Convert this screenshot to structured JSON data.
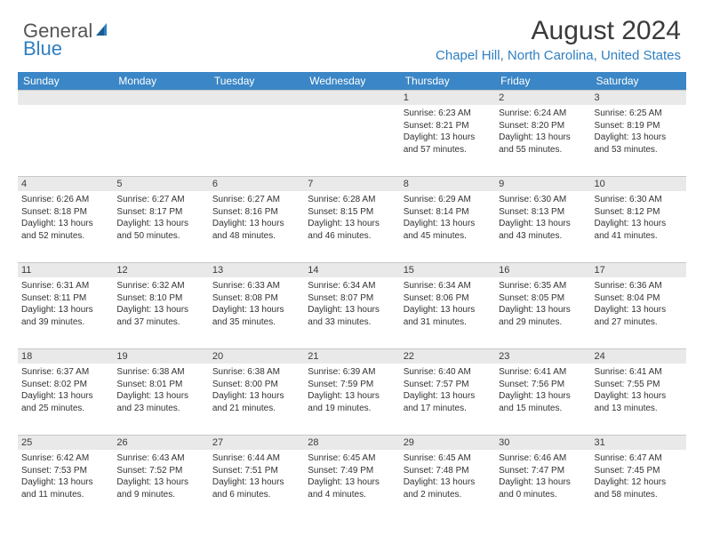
{
  "brand": {
    "line1": "General",
    "line2": "Blue",
    "icon_color": "#2f7fc1"
  },
  "header": {
    "title": "August 2024",
    "location": "Chapel Hill, North Carolina, United States"
  },
  "colors": {
    "header_bg": "#3a86c6",
    "header_text": "#ffffff",
    "daynum_bg": "#e9e9e9",
    "text": "#333333",
    "accent": "#2f7fc1"
  },
  "weekdays": [
    "Sunday",
    "Monday",
    "Tuesday",
    "Wednesday",
    "Thursday",
    "Friday",
    "Saturday"
  ],
  "weeks": [
    [
      {
        "day": "",
        "sunrise": "",
        "sunset": "",
        "daylight": ""
      },
      {
        "day": "",
        "sunrise": "",
        "sunset": "",
        "daylight": ""
      },
      {
        "day": "",
        "sunrise": "",
        "sunset": "",
        "daylight": ""
      },
      {
        "day": "",
        "sunrise": "",
        "sunset": "",
        "daylight": ""
      },
      {
        "day": "1",
        "sunrise": "Sunrise: 6:23 AM",
        "sunset": "Sunset: 8:21 PM",
        "daylight": "Daylight: 13 hours and 57 minutes."
      },
      {
        "day": "2",
        "sunrise": "Sunrise: 6:24 AM",
        "sunset": "Sunset: 8:20 PM",
        "daylight": "Daylight: 13 hours and 55 minutes."
      },
      {
        "day": "3",
        "sunrise": "Sunrise: 6:25 AM",
        "sunset": "Sunset: 8:19 PM",
        "daylight": "Daylight: 13 hours and 53 minutes."
      }
    ],
    [
      {
        "day": "4",
        "sunrise": "Sunrise: 6:26 AM",
        "sunset": "Sunset: 8:18 PM",
        "daylight": "Daylight: 13 hours and 52 minutes."
      },
      {
        "day": "5",
        "sunrise": "Sunrise: 6:27 AM",
        "sunset": "Sunset: 8:17 PM",
        "daylight": "Daylight: 13 hours and 50 minutes."
      },
      {
        "day": "6",
        "sunrise": "Sunrise: 6:27 AM",
        "sunset": "Sunset: 8:16 PM",
        "daylight": "Daylight: 13 hours and 48 minutes."
      },
      {
        "day": "7",
        "sunrise": "Sunrise: 6:28 AM",
        "sunset": "Sunset: 8:15 PM",
        "daylight": "Daylight: 13 hours and 46 minutes."
      },
      {
        "day": "8",
        "sunrise": "Sunrise: 6:29 AM",
        "sunset": "Sunset: 8:14 PM",
        "daylight": "Daylight: 13 hours and 45 minutes."
      },
      {
        "day": "9",
        "sunrise": "Sunrise: 6:30 AM",
        "sunset": "Sunset: 8:13 PM",
        "daylight": "Daylight: 13 hours and 43 minutes."
      },
      {
        "day": "10",
        "sunrise": "Sunrise: 6:30 AM",
        "sunset": "Sunset: 8:12 PM",
        "daylight": "Daylight: 13 hours and 41 minutes."
      }
    ],
    [
      {
        "day": "11",
        "sunrise": "Sunrise: 6:31 AM",
        "sunset": "Sunset: 8:11 PM",
        "daylight": "Daylight: 13 hours and 39 minutes."
      },
      {
        "day": "12",
        "sunrise": "Sunrise: 6:32 AM",
        "sunset": "Sunset: 8:10 PM",
        "daylight": "Daylight: 13 hours and 37 minutes."
      },
      {
        "day": "13",
        "sunrise": "Sunrise: 6:33 AM",
        "sunset": "Sunset: 8:08 PM",
        "daylight": "Daylight: 13 hours and 35 minutes."
      },
      {
        "day": "14",
        "sunrise": "Sunrise: 6:34 AM",
        "sunset": "Sunset: 8:07 PM",
        "daylight": "Daylight: 13 hours and 33 minutes."
      },
      {
        "day": "15",
        "sunrise": "Sunrise: 6:34 AM",
        "sunset": "Sunset: 8:06 PM",
        "daylight": "Daylight: 13 hours and 31 minutes."
      },
      {
        "day": "16",
        "sunrise": "Sunrise: 6:35 AM",
        "sunset": "Sunset: 8:05 PM",
        "daylight": "Daylight: 13 hours and 29 minutes."
      },
      {
        "day": "17",
        "sunrise": "Sunrise: 6:36 AM",
        "sunset": "Sunset: 8:04 PM",
        "daylight": "Daylight: 13 hours and 27 minutes."
      }
    ],
    [
      {
        "day": "18",
        "sunrise": "Sunrise: 6:37 AM",
        "sunset": "Sunset: 8:02 PM",
        "daylight": "Daylight: 13 hours and 25 minutes."
      },
      {
        "day": "19",
        "sunrise": "Sunrise: 6:38 AM",
        "sunset": "Sunset: 8:01 PM",
        "daylight": "Daylight: 13 hours and 23 minutes."
      },
      {
        "day": "20",
        "sunrise": "Sunrise: 6:38 AM",
        "sunset": "Sunset: 8:00 PM",
        "daylight": "Daylight: 13 hours and 21 minutes."
      },
      {
        "day": "21",
        "sunrise": "Sunrise: 6:39 AM",
        "sunset": "Sunset: 7:59 PM",
        "daylight": "Daylight: 13 hours and 19 minutes."
      },
      {
        "day": "22",
        "sunrise": "Sunrise: 6:40 AM",
        "sunset": "Sunset: 7:57 PM",
        "daylight": "Daylight: 13 hours and 17 minutes."
      },
      {
        "day": "23",
        "sunrise": "Sunrise: 6:41 AM",
        "sunset": "Sunset: 7:56 PM",
        "daylight": "Daylight: 13 hours and 15 minutes."
      },
      {
        "day": "24",
        "sunrise": "Sunrise: 6:41 AM",
        "sunset": "Sunset: 7:55 PM",
        "daylight": "Daylight: 13 hours and 13 minutes."
      }
    ],
    [
      {
        "day": "25",
        "sunrise": "Sunrise: 6:42 AM",
        "sunset": "Sunset: 7:53 PM",
        "daylight": "Daylight: 13 hours and 11 minutes."
      },
      {
        "day": "26",
        "sunrise": "Sunrise: 6:43 AM",
        "sunset": "Sunset: 7:52 PM",
        "daylight": "Daylight: 13 hours and 9 minutes."
      },
      {
        "day": "27",
        "sunrise": "Sunrise: 6:44 AM",
        "sunset": "Sunset: 7:51 PM",
        "daylight": "Daylight: 13 hours and 6 minutes."
      },
      {
        "day": "28",
        "sunrise": "Sunrise: 6:45 AM",
        "sunset": "Sunset: 7:49 PM",
        "daylight": "Daylight: 13 hours and 4 minutes."
      },
      {
        "day": "29",
        "sunrise": "Sunrise: 6:45 AM",
        "sunset": "Sunset: 7:48 PM",
        "daylight": "Daylight: 13 hours and 2 minutes."
      },
      {
        "day": "30",
        "sunrise": "Sunrise: 6:46 AM",
        "sunset": "Sunset: 7:47 PM",
        "daylight": "Daylight: 13 hours and 0 minutes."
      },
      {
        "day": "31",
        "sunrise": "Sunrise: 6:47 AM",
        "sunset": "Sunset: 7:45 PM",
        "daylight": "Daylight: 12 hours and 58 minutes."
      }
    ]
  ]
}
